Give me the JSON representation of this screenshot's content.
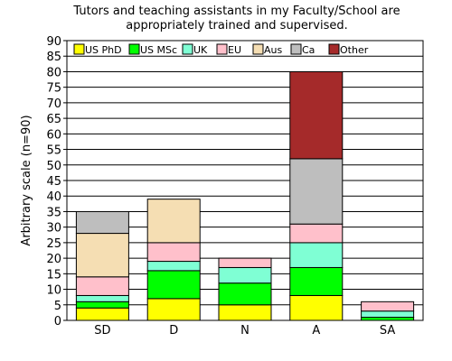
{
  "chart_data": {
    "type": "bar",
    "stacked": true,
    "title_lines": [
      "Tutors and teaching assistants in my Faculty/School are",
      "appropriately trained and supervised."
    ],
    "xlabel": "",
    "ylabel": "Arbitrary scale (n=90)",
    "ylim": [
      0,
      90
    ],
    "yticks": [
      0,
      5,
      10,
      15,
      20,
      25,
      30,
      35,
      40,
      45,
      50,
      55,
      60,
      65,
      70,
      75,
      80,
      85,
      90
    ],
    "grid": true,
    "legend_position": "top",
    "categories": [
      "SD",
      "D",
      "N",
      "A",
      "SA"
    ],
    "series": [
      {
        "name": "US PhD",
        "color": "#ffff00",
        "values": [
          4,
          7,
          5,
          8,
          0
        ]
      },
      {
        "name": "US MSc",
        "color": "#00ff00",
        "values": [
          2,
          9,
          7,
          9,
          1
        ]
      },
      {
        "name": "UK",
        "color": "#7fffd4",
        "values": [
          2,
          3,
          5,
          8,
          2
        ]
      },
      {
        "name": "EU",
        "color": "#ffc0cb",
        "values": [
          6,
          6,
          3,
          6,
          3
        ]
      },
      {
        "name": "Aus",
        "color": "#f5deb3",
        "values": [
          14,
          14,
          0,
          0,
          0
        ]
      },
      {
        "name": "Ca",
        "color": "#bebebe",
        "values": [
          7,
          0,
          0,
          21,
          0
        ]
      },
      {
        "name": "Other",
        "color": "#a52a2a",
        "values": [
          0,
          0,
          0,
          28,
          0
        ]
      }
    ]
  }
}
